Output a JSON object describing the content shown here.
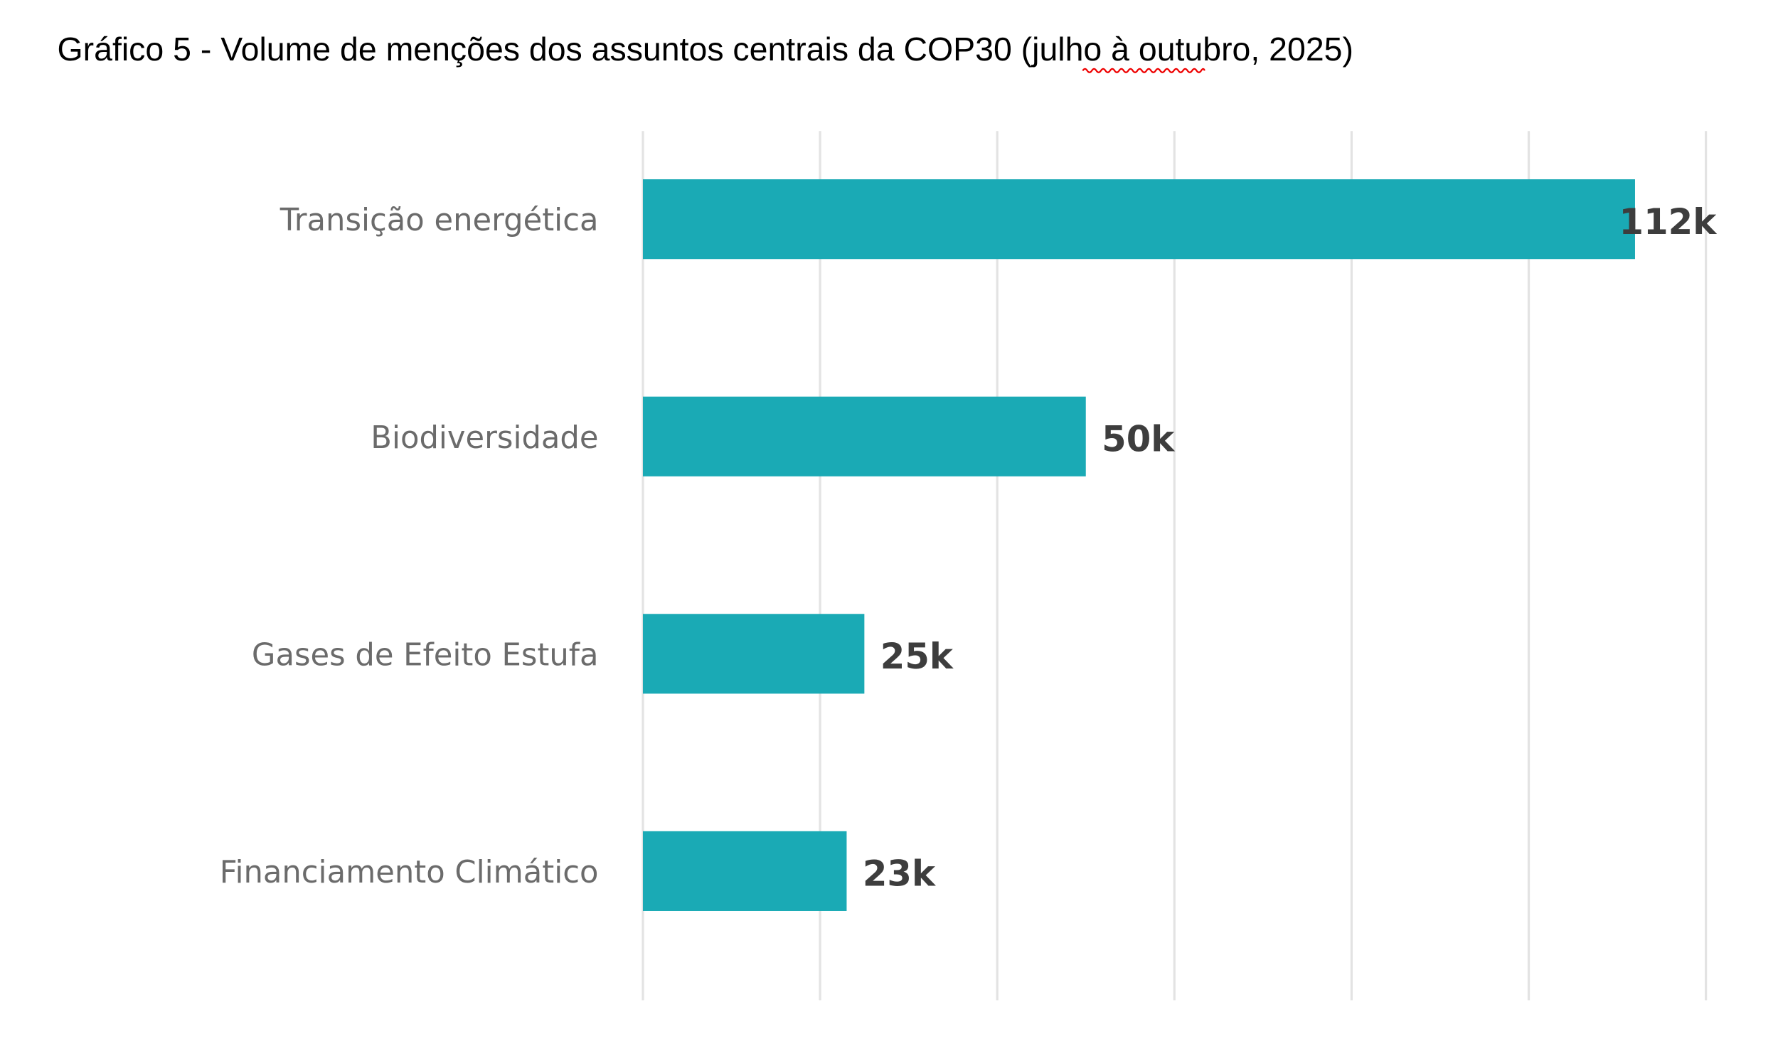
{
  "chart_data": {
    "type": "bar",
    "orientation": "horizontal",
    "title": "Gráfico 5 - Volume de menções dos assuntos centrais da COP30  (julho à outubro, 2025)",
    "categories": [
      "Transição energética",
      "Biodiversidade",
      "Gases de Efeito Estufa",
      "Financiamento Climático"
    ],
    "values": [
      112,
      50,
      25,
      23
    ],
    "data_labels": [
      "112k",
      "50k",
      "25k",
      "23k"
    ],
    "unit": "k",
    "xlim": [
      0,
      120
    ],
    "gridline_step": 20,
    "grid": true,
    "x_tick_labels_shown": false,
    "bar_color": "#1aaab5",
    "xlabel": "",
    "ylabel": ""
  }
}
